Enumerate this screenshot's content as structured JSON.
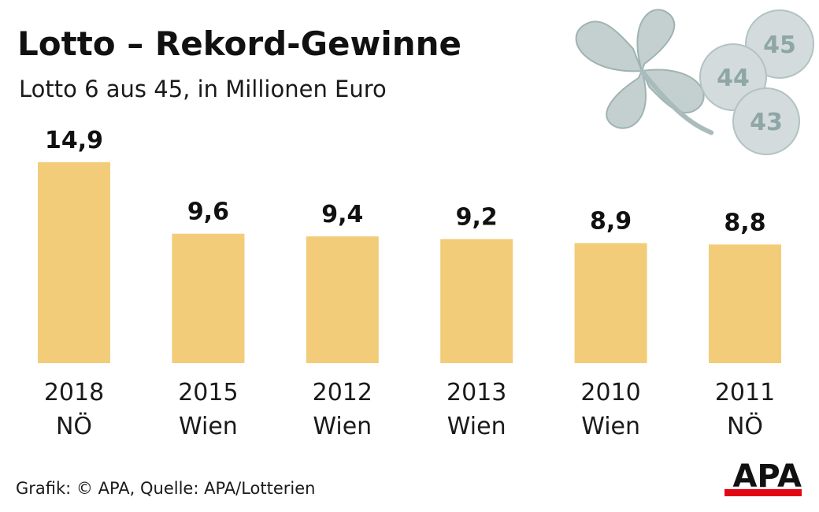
{
  "title": "Lotto – Rekord-Gewinne",
  "subtitle": "Lotto 6 aus 45, in Millionen Euro",
  "source": "Grafik: © APA, Quelle: APA/Lotterien",
  "logo": "APA",
  "decoration": {
    "balls": [
      "45",
      "44",
      "43"
    ],
    "clover_color": "#c3d0cf",
    "ball_color": "#d3dbdc"
  },
  "colors": {
    "bar": "#f2cc78",
    "logo_accent": "#e30613"
  },
  "chart_data": {
    "type": "bar",
    "title": "Lotto – Rekord-Gewinne",
    "subtitle": "Lotto 6 aus 45, in Millionen Euro",
    "categories": [
      [
        "2018",
        "NÖ"
      ],
      [
        "2015",
        "Wien"
      ],
      [
        "2012",
        "Wien"
      ],
      [
        "2013",
        "Wien"
      ],
      [
        "2010",
        "Wien"
      ],
      [
        "2011",
        "NÖ"
      ]
    ],
    "values": [
      14.9,
      9.6,
      9.4,
      9.2,
      8.9,
      8.8
    ],
    "value_labels": [
      "14,9",
      "9,6",
      "9,4",
      "9,2",
      "8,9",
      "8,8"
    ],
    "ylim": [
      0,
      14.9
    ],
    "grid": false,
    "legend": "none"
  }
}
